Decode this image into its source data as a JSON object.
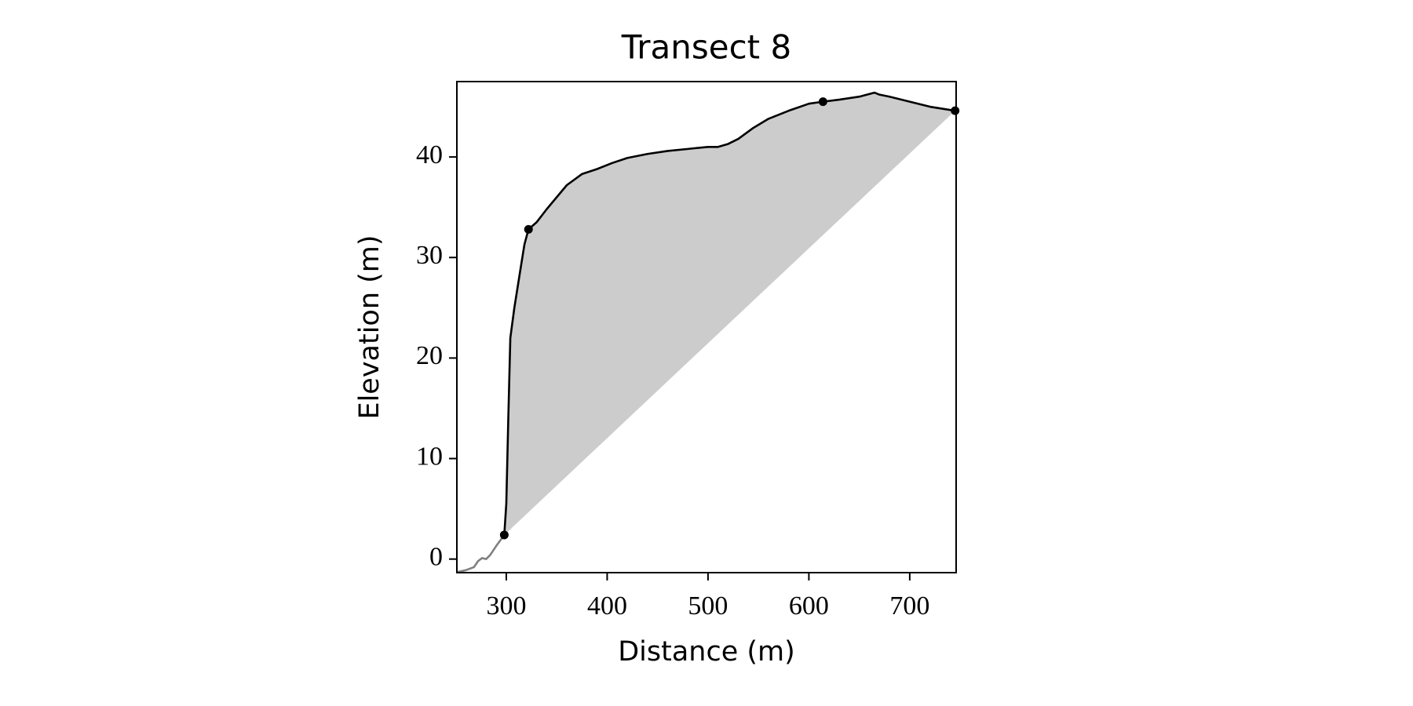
{
  "chart_data": {
    "type": "line",
    "title": "Transect 8",
    "xlabel": "Distance (m)",
    "ylabel": "Elevation (m)",
    "xlim": [
      251,
      746
    ],
    "ylim": [
      -1.35,
      47.5
    ],
    "xticks": [
      300,
      400,
      500,
      600,
      700
    ],
    "yticks": [
      0,
      10,
      20,
      30,
      40
    ],
    "fill_color": "#cccccc",
    "series": [
      {
        "color": "#808080",
        "x": [
          251,
          260,
          268,
          272,
          276,
          280,
          284,
          290,
          298
        ],
        "values": [
          -1.3,
          -1.1,
          -0.8,
          -0.2,
          0.1,
          0,
          0.4,
          1.3,
          2.4
        ]
      },
      {
        "color": "#000000",
        "fill": true,
        "x": [
          298,
          300,
          302,
          304,
          308,
          314,
          318,
          322,
          330,
          340,
          350,
          360,
          375,
          390,
          405,
          420,
          440,
          460,
          480,
          500,
          510,
          520,
          530,
          545,
          560,
          580,
          600,
          614,
          630,
          650,
          665,
          670,
          680,
          700,
          720,
          745
        ],
        "values": [
          2.4,
          5.5,
          14,
          22,
          25,
          28.8,
          31.3,
          32.8,
          33.5,
          34.8,
          36,
          37.2,
          38.3,
          38.8,
          39.4,
          39.9,
          40.3,
          40.6,
          40.8,
          41.0,
          41.0,
          41.3,
          41.8,
          42.9,
          43.8,
          44.6,
          45.3,
          45.5,
          45.7,
          46.0,
          46.4,
          46.2,
          46.0,
          45.5,
          45.0,
          44.6
        ]
      },
      {
        "color": "#000000",
        "marker": true,
        "x": [
          298,
          322,
          614,
          745
        ],
        "values": [
          2.4,
          32.8,
          45.5,
          44.6
        ]
      }
    ]
  }
}
